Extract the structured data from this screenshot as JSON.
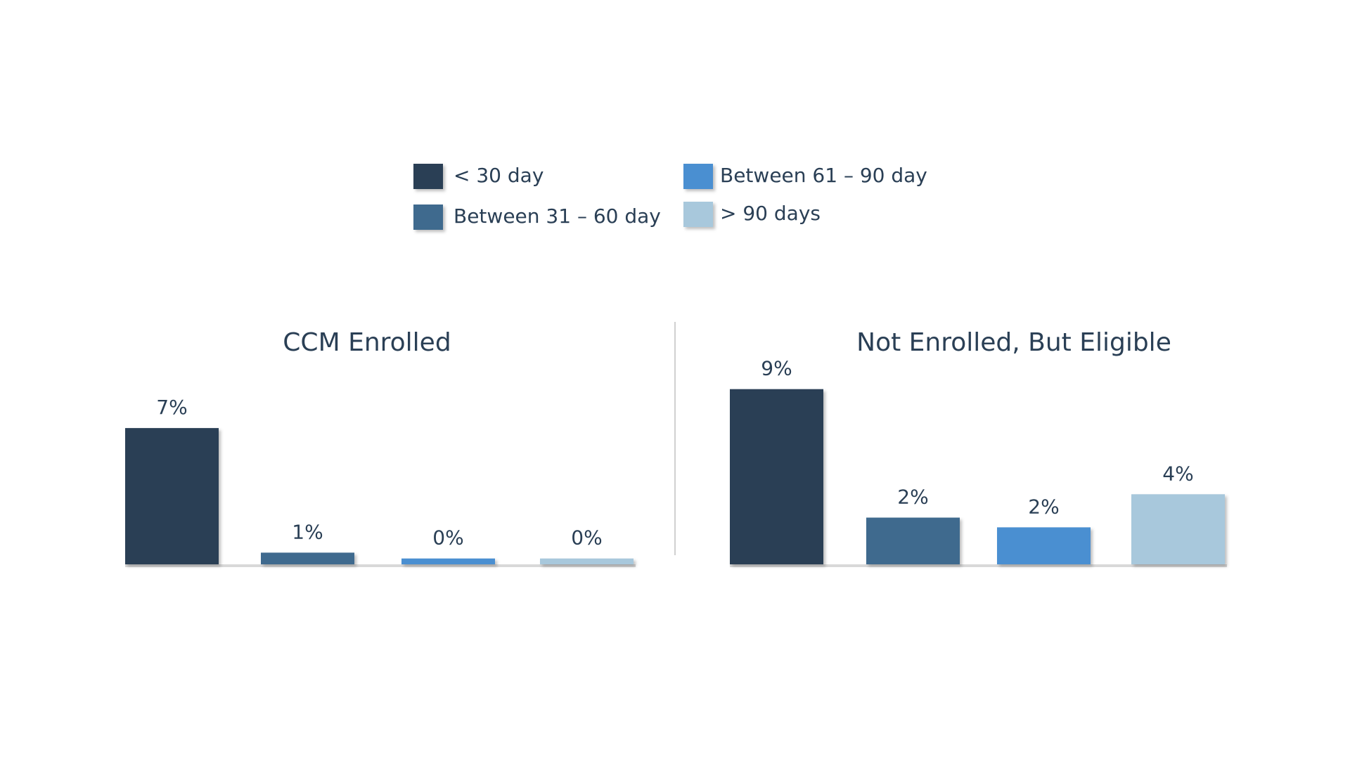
{
  "legend": {
    "items": [
      {
        "name": "< 30 day",
        "color": "#2a3f55"
      },
      {
        "name": "Between 31 – 60 day",
        "color": "#3f6a8e"
      },
      {
        "name": "Between 61 – 90 day",
        "color": "#4a8fd1"
      },
      {
        "name": "> 90 days",
        "color": "#a8c8dc"
      }
    ]
  },
  "chart_data": [
    {
      "type": "bar",
      "title": "CCM Enrolled",
      "values": [
        7,
        0.6,
        0.3,
        0.3
      ],
      "value_labels": [
        "7%",
        "1%",
        "0%",
        "0%"
      ]
    },
    {
      "type": "bar",
      "title": "Not Enrolled, But Eligible",
      "values": [
        9,
        2.4,
        1.9,
        3.6
      ],
      "value_labels": [
        "9%",
        "2%",
        "2%",
        "4%"
      ]
    }
  ]
}
